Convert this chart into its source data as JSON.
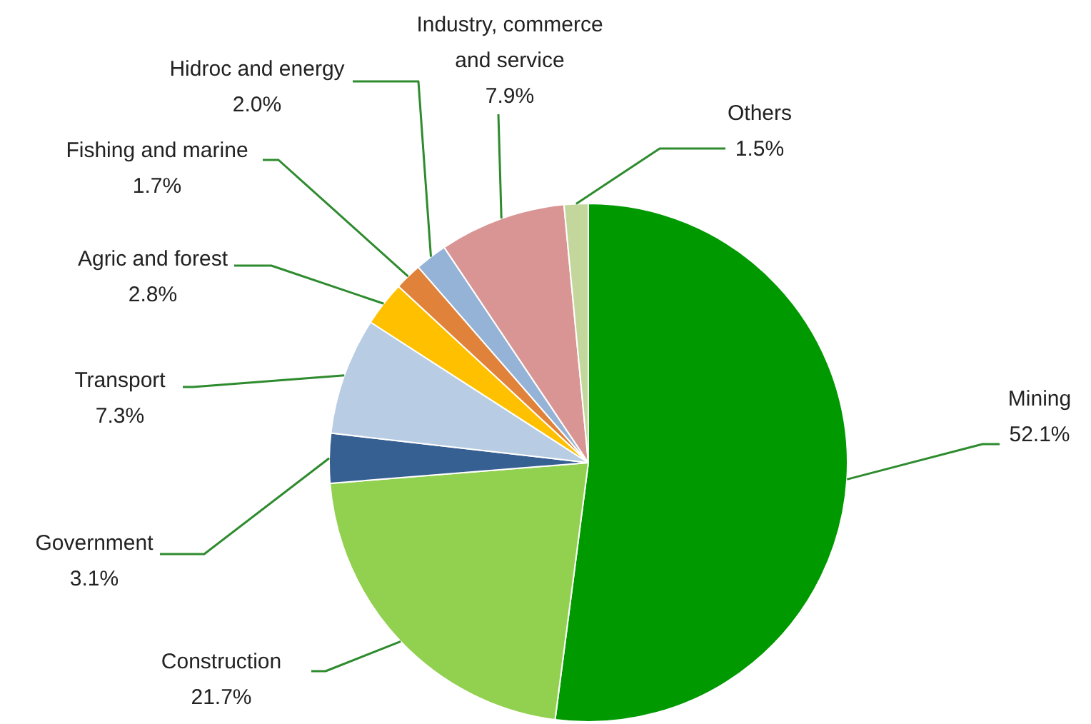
{
  "chart_data": {
    "type": "pie",
    "categories": [
      "Mining",
      "Construction",
      "Government",
      "Transport",
      "Agric and forest",
      "Fishing and marine",
      "Hidroc and energy",
      "Industry, commerce and service",
      "Others"
    ],
    "values": [
      52.1,
      21.7,
      3.1,
      7.3,
      2.8,
      1.7,
      2.0,
      7.9,
      1.5
    ],
    "value_labels": [
      "52.1%",
      "21.7%",
      "3.1%",
      "7.3%",
      "2.8%",
      "1.7%",
      "2.0%",
      "7.9%",
      "1.5%"
    ],
    "colors": [
      "#009900",
      "#92d050",
      "#376092",
      "#b8cce4",
      "#ffc000",
      "#e0823a",
      "#95b3d7",
      "#d99594",
      "#c3d69b"
    ],
    "legend": false
  }
}
